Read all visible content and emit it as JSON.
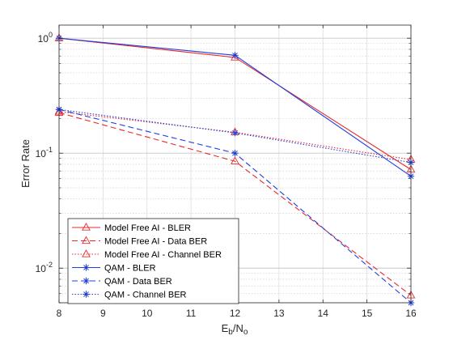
{
  "chart_data": {
    "type": "line",
    "title": "",
    "xlabel": {
      "main": "E",
      "sub1": "b",
      "mid": "/N",
      "sub2": "o"
    },
    "ylabel": "Error Rate",
    "y_scale": "log",
    "xlim": [
      8,
      16
    ],
    "ylim": [
      0.005,
      1.3
    ],
    "x_ticks": [
      "8",
      "9",
      "10",
      "11",
      "12",
      "13",
      "14",
      "15",
      "16"
    ],
    "y_ticks": [
      {
        "value": 1,
        "base": "10",
        "exp": "0"
      },
      {
        "value": 0.1,
        "base": "10",
        "exp": "-1"
      },
      {
        "value": 0.01,
        "base": "10",
        "exp": "-2"
      }
    ],
    "grid": true,
    "minor_grid": true,
    "legend_position": "bottom-left",
    "series": [
      {
        "name": "Model Free AI - BLER",
        "x": [
          8,
          12,
          16
        ],
        "y": [
          1.0,
          0.68,
          0.072
        ],
        "color": "#e8292b",
        "dash": "solid",
        "marker": "triangle"
      },
      {
        "name": "Model Free AI - Data BER",
        "x": [
          8,
          12,
          16
        ],
        "y": [
          0.225,
          0.085,
          0.0058
        ],
        "color": "#e8292b",
        "dash": "dashed",
        "marker": "triangle"
      },
      {
        "name": "Model Free AI - Channel BER",
        "x": [
          8,
          12,
          16
        ],
        "y": [
          0.23,
          0.152,
          0.088
        ],
        "color": "#e8292b",
        "dash": "dotted",
        "marker": "triangle"
      },
      {
        "name": "QAM - BLER",
        "x": [
          8,
          12,
          16
        ],
        "y": [
          1.0,
          0.71,
          0.063
        ],
        "color": "#1f3fe0",
        "dash": "solid",
        "marker": "star"
      },
      {
        "name": "QAM - Data BER",
        "x": [
          8,
          12,
          16
        ],
        "y": [
          0.24,
          0.1,
          0.005
        ],
        "color": "#1f3fe0",
        "dash": "dashed",
        "marker": "star"
      },
      {
        "name": "QAM - Channel BER",
        "x": [
          8,
          12,
          16
        ],
        "y": [
          0.24,
          0.15,
          0.083
        ],
        "color": "#1f3fe0",
        "dash": "dotted",
        "marker": "star"
      }
    ]
  }
}
